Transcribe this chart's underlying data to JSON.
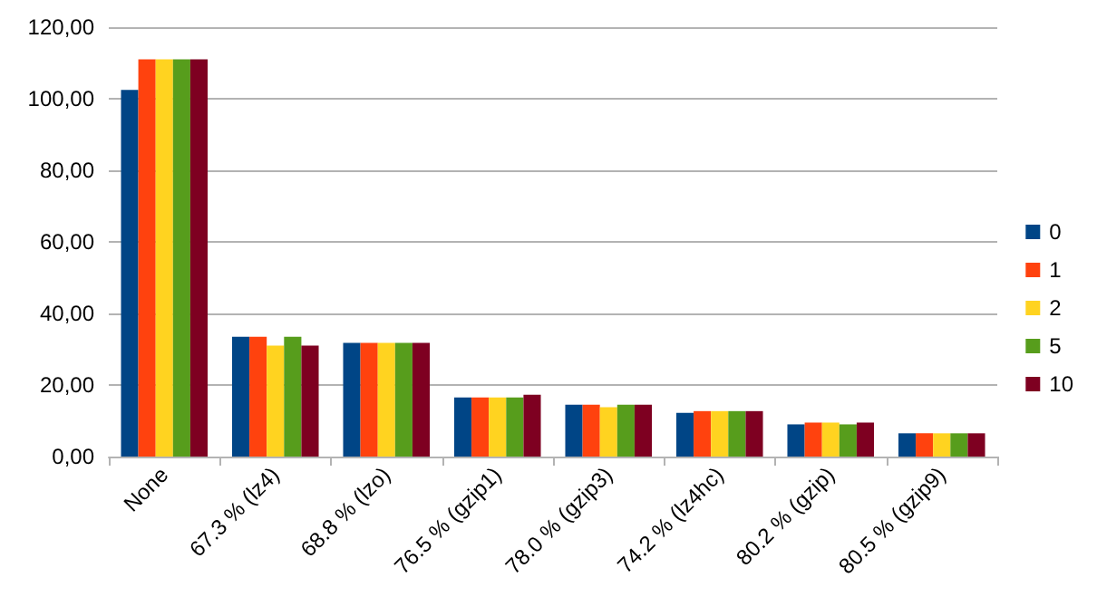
{
  "chart_data": {
    "type": "bar",
    "categories": [
      "None",
      "67.3 % (lz4)",
      "68.8 % (lzo)",
      "76.5 % (gzip1)",
      "78.0 % (gzip3)",
      "74.2 % (lz4hc)",
      "80.2 % (gzip)",
      "80.5 % (gzip9)"
    ],
    "series": [
      {
        "name": "0",
        "color": "#004586",
        "values": [
          102.5,
          33.5,
          31.8,
          16.5,
          14.5,
          12.2,
          9.0,
          6.5
        ]
      },
      {
        "name": "1",
        "color": "#ff420e",
        "values": [
          111.0,
          33.5,
          31.8,
          16.5,
          14.5,
          12.7,
          9.5,
          6.5
        ]
      },
      {
        "name": "2",
        "color": "#ffd320",
        "values": [
          111.0,
          31.0,
          31.8,
          16.5,
          13.8,
          12.7,
          9.5,
          6.5
        ]
      },
      {
        "name": "5",
        "color": "#579d1c",
        "values": [
          111.0,
          33.5,
          31.8,
          16.5,
          14.5,
          12.7,
          9.0,
          6.5
        ]
      },
      {
        "name": "10",
        "color": "#7e0021",
        "values": [
          111.0,
          31.0,
          31.8,
          17.3,
          14.5,
          12.7,
          9.5,
          6.5
        ]
      }
    ],
    "ylim": [
      0,
      120
    ],
    "yticks": [
      {
        "value": 0,
        "label": "0,00"
      },
      {
        "value": 20,
        "label": "20,00"
      },
      {
        "value": 40,
        "label": "40,00"
      },
      {
        "value": 60,
        "label": "60,00"
      },
      {
        "value": 80,
        "label": "80,00"
      },
      {
        "value": 100,
        "label": "100,00"
      },
      {
        "value": 120,
        "label": "120,00"
      }
    ],
    "grid": "y",
    "legend": "right"
  }
}
